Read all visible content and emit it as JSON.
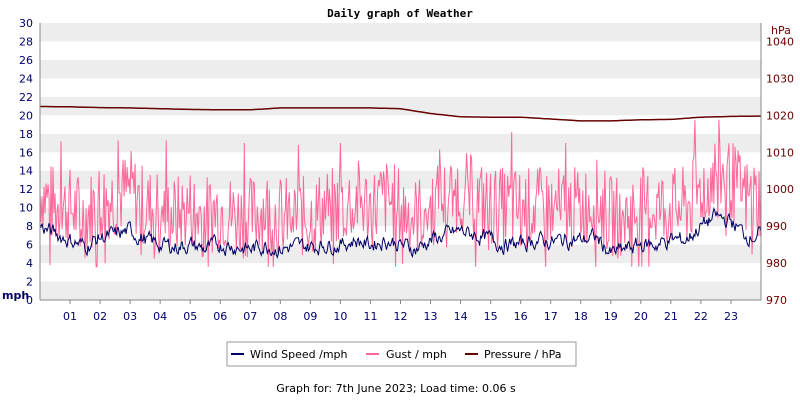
{
  "chart_data": {
    "type": "line",
    "title": "Daily graph of Weather",
    "left_axis": {
      "unit": "mph",
      "range": [
        0,
        30
      ],
      "ticks": [
        0,
        2,
        4,
        6,
        8,
        10,
        12,
        14,
        16,
        18,
        20,
        22,
        24,
        26,
        28,
        30
      ]
    },
    "right_axis": {
      "unit": "hPa",
      "range": [
        970,
        1045
      ],
      "ticks": [
        970,
        980,
        990,
        1000,
        1010,
        1020,
        1030,
        1040
      ]
    },
    "x_axis": {
      "range": [
        0,
        24
      ],
      "tick_labels": [
        "01",
        "02",
        "03",
        "04",
        "05",
        "06",
        "07",
        "08",
        "09",
        "10",
        "11",
        "12",
        "13",
        "14",
        "15",
        "16",
        "17",
        "18",
        "19",
        "20",
        "21",
        "22",
        "23"
      ]
    },
    "grid": "horizontal banded",
    "legend_position": "bottom",
    "series": [
      {
        "name": "Wind Speed /mph",
        "axis": "left",
        "color": "#000066",
        "x": [
          0,
          0.5,
          1,
          1.5,
          2,
          2.5,
          3,
          3.5,
          4,
          4.5,
          5,
          5.5,
          6,
          6.5,
          7,
          7.5,
          8,
          8.5,
          9,
          9.5,
          10,
          10.5,
          11,
          11.5,
          12,
          12.5,
          13,
          13.5,
          14,
          14.5,
          15,
          15.5,
          16,
          16.5,
          17,
          17.5,
          18,
          18.5,
          19,
          19.5,
          20,
          20.5,
          21,
          21.5,
          22,
          22.5,
          23,
          23.5,
          24
        ],
        "values": [
          8,
          7.2,
          6.5,
          5.8,
          6.8,
          7,
          7.5,
          6.5,
          6,
          5.8,
          6,
          5.5,
          6,
          5.8,
          5.5,
          6,
          5.5,
          5.8,
          5.8,
          6,
          6,
          6.5,
          6,
          6.5,
          6,
          5.5,
          6.5,
          7,
          7.5,
          7,
          6.5,
          6,
          6,
          6.5,
          6.3,
          6.5,
          6.5,
          6.8,
          5,
          5.5,
          6,
          6,
          6.5,
          6.5,
          8,
          9,
          8.5,
          7,
          7
        ]
      },
      {
        "name": "Gust / mph",
        "axis": "left",
        "color": "#ff6699",
        "x": [
          0,
          0.5,
          1,
          1.5,
          2,
          2.5,
          3,
          3.5,
          4,
          4.5,
          5,
          5.5,
          6,
          6.5,
          7,
          7.5,
          8,
          8.5,
          9,
          9.5,
          10,
          10.5,
          11,
          11.5,
          12,
          12.5,
          13,
          13.5,
          14,
          14.5,
          15,
          15.5,
          16,
          16.5,
          17,
          17.5,
          18,
          18.5,
          19,
          19.5,
          20,
          20.5,
          21,
          21.5,
          22,
          22.5,
          23,
          23.5,
          24
        ],
        "values": [
          12,
          10,
          10,
          9,
          11,
          11,
          12,
          10,
          10,
          9,
          10,
          9,
          10,
          9,
          9,
          10,
          9,
          9,
          9,
          10,
          10,
          11,
          10,
          11,
          10,
          9,
          10,
          11,
          12,
          11,
          10,
          10,
          10,
          10,
          10,
          10,
          10,
          11,
          9,
          9,
          10,
          10,
          10,
          10,
          12,
          14,
          13,
          11,
          11
        ],
        "peaks": [
          {
            "x": 0.7,
            "value": 17.2
          },
          {
            "x": 2.6,
            "value": 17.3
          },
          {
            "x": 4.2,
            "value": 17.3
          },
          {
            "x": 6.8,
            "value": 17.0
          },
          {
            "x": 8.6,
            "value": 16.8
          },
          {
            "x": 10.0,
            "value": 17.0
          },
          {
            "x": 13.3,
            "value": 16.3
          },
          {
            "x": 15.7,
            "value": 18.2
          },
          {
            "x": 17.5,
            "value": 17.0
          },
          {
            "x": 21.8,
            "value": 19.5
          },
          {
            "x": 22.6,
            "value": 19.5
          }
        ]
      },
      {
        "name": "Pressure / hPa",
        "axis": "right",
        "color": "#660000",
        "x": [
          0,
          1,
          2,
          3,
          4,
          5,
          6,
          7,
          8,
          9,
          10,
          11,
          12,
          13,
          14,
          15,
          16,
          17,
          18,
          19,
          20,
          21,
          22,
          23,
          24
        ],
        "values": [
          1022.4,
          1022.3,
          1022.1,
          1022.0,
          1021.8,
          1021.6,
          1021.5,
          1021.5,
          1022.0,
          1022.0,
          1022.0,
          1022.0,
          1021.8,
          1020.5,
          1019.6,
          1019.5,
          1019.5,
          1019.0,
          1018.5,
          1018.5,
          1018.8,
          1018.9,
          1019.5,
          1019.7,
          1019.8
        ]
      }
    ]
  },
  "footer": "Graph for: 7th June 2023; Load time: 0.06 s"
}
